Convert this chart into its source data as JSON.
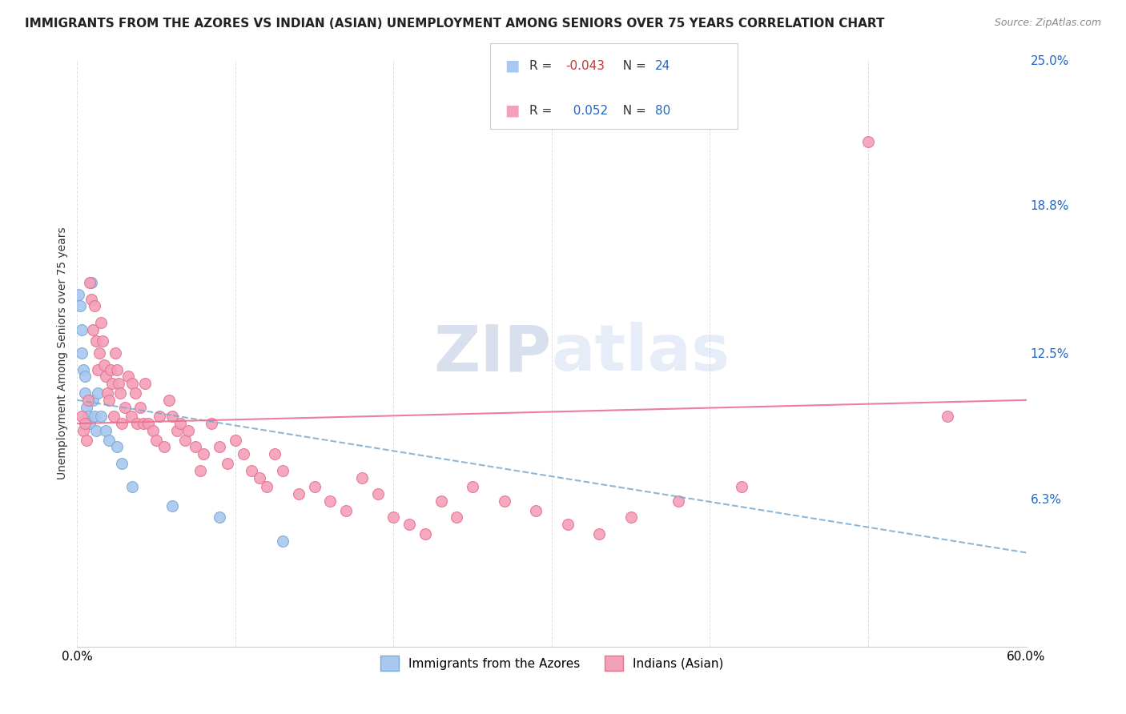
{
  "title": "IMMIGRANTS FROM THE AZORES VS INDIAN (ASIAN) UNEMPLOYMENT AMONG SENIORS OVER 75 YEARS CORRELATION CHART",
  "source": "Source: ZipAtlas.com",
  "ylabel": "Unemployment Among Seniors over 75 years",
  "xlim": [
    0.0,
    0.6
  ],
  "ylim": [
    0.0,
    0.25
  ],
  "x_ticks": [
    0.0,
    0.1,
    0.2,
    0.3,
    0.4,
    0.5,
    0.6
  ],
  "y_tick_vals_right": [
    0.25,
    0.188,
    0.125,
    0.063,
    0.0
  ],
  "y_tick_labels_right": [
    "25.0%",
    "18.8%",
    "12.5%",
    "6.3%",
    ""
  ],
  "azores_R": -0.043,
  "azores_N": 24,
  "indian_R": 0.052,
  "indian_N": 80,
  "azores_color": "#a8c8f0",
  "indian_color": "#f4a0b8",
  "azores_edge_color": "#7aaad0",
  "indian_edge_color": "#e87090",
  "azores_line_color": "#7aaad0",
  "indian_line_color": "#e87090",
  "watermark": "ZIPatlas",
  "watermark_color": "#c8d8f0",
  "azores_x": [
    0.001,
    0.002,
    0.003,
    0.003,
    0.004,
    0.005,
    0.005,
    0.006,
    0.007,
    0.008,
    0.009,
    0.01,
    0.011,
    0.012,
    0.013,
    0.015,
    0.018,
    0.02,
    0.025,
    0.028,
    0.035,
    0.06,
    0.09,
    0.13
  ],
  "azores_y": [
    0.15,
    0.145,
    0.135,
    0.125,
    0.118,
    0.115,
    0.108,
    0.102,
    0.098,
    0.095,
    0.155,
    0.105,
    0.098,
    0.092,
    0.108,
    0.098,
    0.092,
    0.088,
    0.085,
    0.078,
    0.068,
    0.06,
    0.055,
    0.045
  ],
  "indian_x": [
    0.003,
    0.004,
    0.005,
    0.006,
    0.007,
    0.008,
    0.009,
    0.01,
    0.011,
    0.012,
    0.013,
    0.014,
    0.015,
    0.016,
    0.017,
    0.018,
    0.019,
    0.02,
    0.021,
    0.022,
    0.023,
    0.024,
    0.025,
    0.026,
    0.027,
    0.028,
    0.03,
    0.032,
    0.034,
    0.035,
    0.037,
    0.038,
    0.04,
    0.042,
    0.043,
    0.045,
    0.048,
    0.05,
    0.052,
    0.055,
    0.058,
    0.06,
    0.063,
    0.065,
    0.068,
    0.07,
    0.075,
    0.078,
    0.08,
    0.085,
    0.09,
    0.095,
    0.1,
    0.105,
    0.11,
    0.115,
    0.12,
    0.125,
    0.13,
    0.14,
    0.15,
    0.16,
    0.17,
    0.18,
    0.19,
    0.2,
    0.21,
    0.22,
    0.23,
    0.24,
    0.25,
    0.27,
    0.29,
    0.31,
    0.33,
    0.35,
    0.38,
    0.42,
    0.5,
    0.55
  ],
  "indian_y": [
    0.098,
    0.092,
    0.095,
    0.088,
    0.105,
    0.155,
    0.148,
    0.135,
    0.145,
    0.13,
    0.118,
    0.125,
    0.138,
    0.13,
    0.12,
    0.115,
    0.108,
    0.105,
    0.118,
    0.112,
    0.098,
    0.125,
    0.118,
    0.112,
    0.108,
    0.095,
    0.102,
    0.115,
    0.098,
    0.112,
    0.108,
    0.095,
    0.102,
    0.095,
    0.112,
    0.095,
    0.092,
    0.088,
    0.098,
    0.085,
    0.105,
    0.098,
    0.092,
    0.095,
    0.088,
    0.092,
    0.085,
    0.075,
    0.082,
    0.095,
    0.085,
    0.078,
    0.088,
    0.082,
    0.075,
    0.072,
    0.068,
    0.082,
    0.075,
    0.065,
    0.068,
    0.062,
    0.058,
    0.072,
    0.065,
    0.055,
    0.052,
    0.048,
    0.062,
    0.055,
    0.068,
    0.062,
    0.058,
    0.052,
    0.048,
    0.055,
    0.062,
    0.068,
    0.215,
    0.098
  ],
  "background_color": "#ffffff",
  "grid_color": "#e0e0e0"
}
